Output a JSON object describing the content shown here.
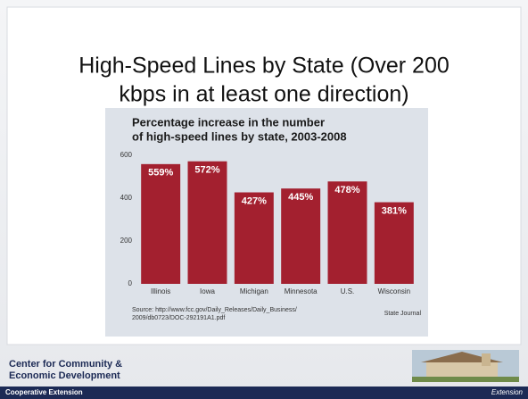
{
  "slide": {
    "title": [
      "High-Speed Lines by State (Over 200",
      "kbps in at least one direction)"
    ]
  },
  "chart_data": {
    "type": "bar",
    "title": [
      "Percentage increase in the number",
      "of high-speed lines by state, 2003-2008"
    ],
    "categories": [
      "Illinois",
      "Iowa",
      "Michigan",
      "Minnesota",
      "U.S.",
      "Wisconsin"
    ],
    "values": [
      559,
      572,
      427,
      445,
      478,
      381
    ],
    "value_labels": [
      "559%",
      "572%",
      "427%",
      "445%",
      "478%",
      "381%"
    ],
    "color": "#a3202f",
    "ylim": [
      0,
      600
    ],
    "yticks": [
      0,
      200,
      400,
      600
    ],
    "grid": false,
    "source": [
      "Source: http://www.fcc.gov/Daily_Releases/Daily_Business/",
      "2009/db0723/DOC-292191A1.pdf"
    ],
    "credit": "State Journal"
  },
  "footer": {
    "logo": [
      "Center for Community &",
      "Economic Development"
    ],
    "band_left": "Cooperative Extension",
    "band_right": "Extension"
  }
}
